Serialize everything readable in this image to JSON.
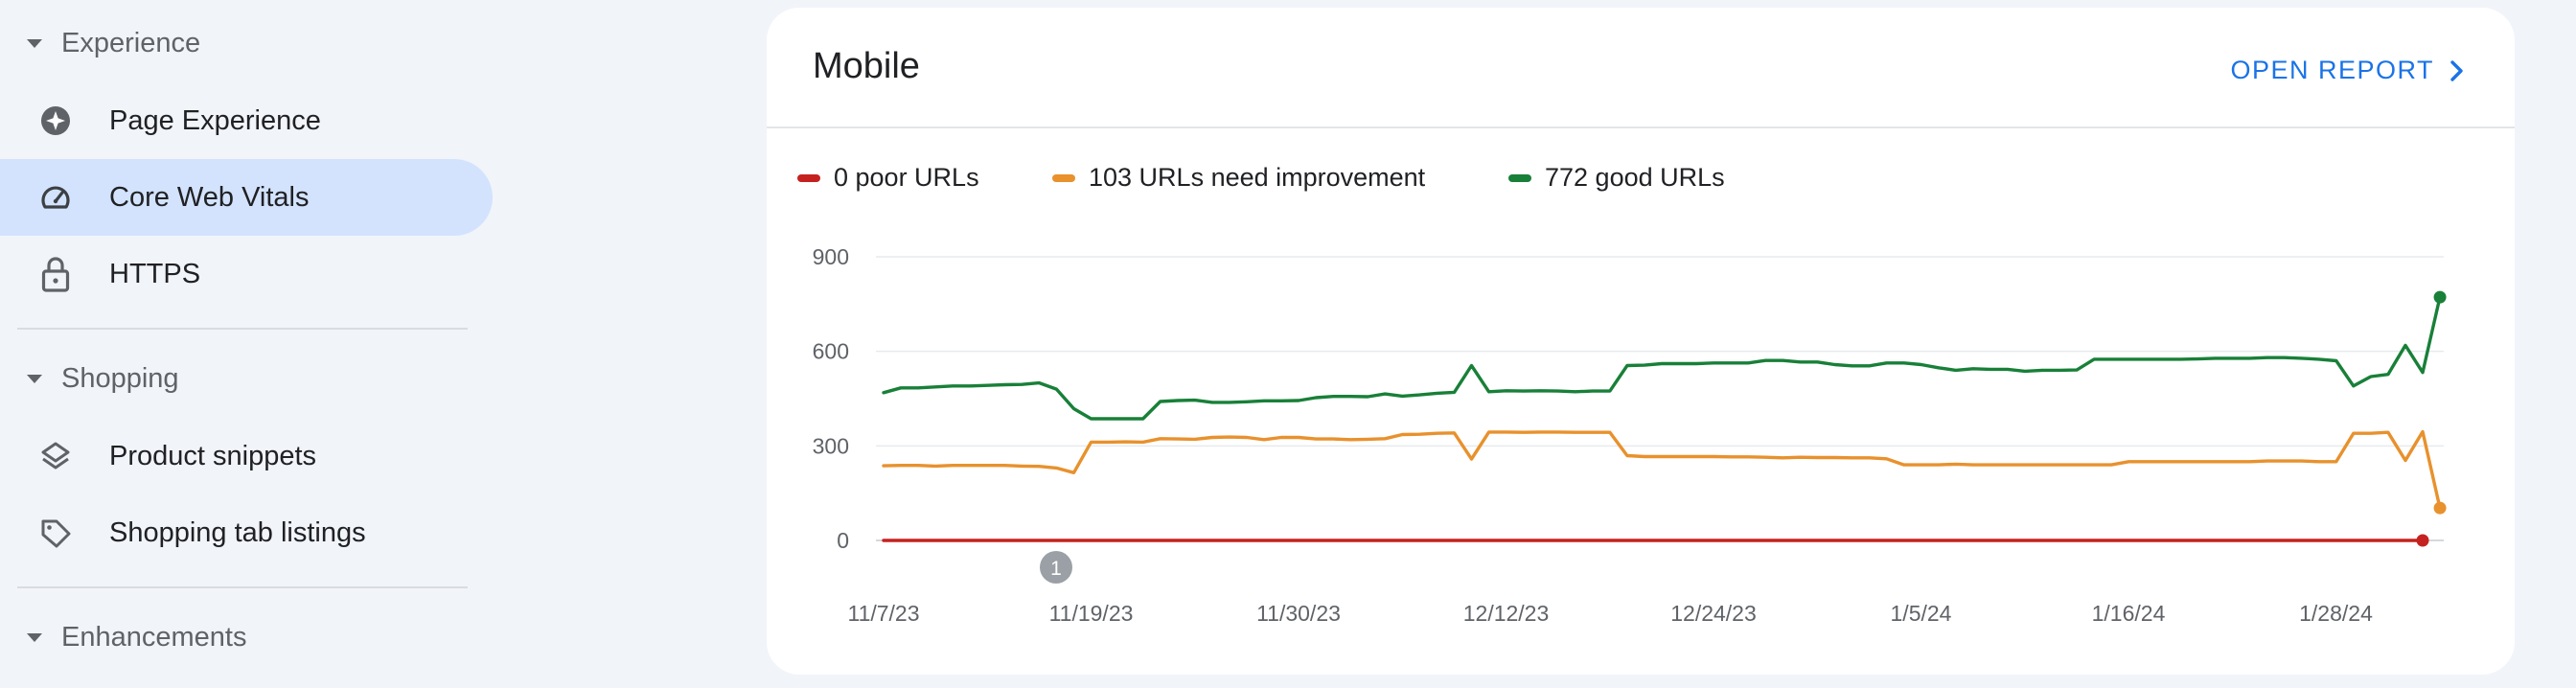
{
  "sidebar": {
    "sections": [
      {
        "label": "Experience"
      },
      {
        "label": "Shopping"
      },
      {
        "label": "Enhancements"
      }
    ],
    "items": [
      {
        "label": "Page Experience",
        "icon": "page-experience-icon"
      },
      {
        "label": "Core Web Vitals",
        "icon": "gauge-icon",
        "active": true
      },
      {
        "label": "HTTPS",
        "icon": "lock-icon"
      },
      {
        "label": "Product snippets",
        "icon": "layers-icon"
      },
      {
        "label": "Shopping tab listings",
        "icon": "tag-icon"
      }
    ],
    "active_color": "#d3e3fd"
  },
  "card": {
    "title": "Mobile",
    "open_report_label": "OPEN REPORT"
  },
  "chart_data": {
    "type": "line",
    "legend": [
      {
        "label": "0 poor URLs",
        "color": "#c5221f"
      },
      {
        "label": "103 URLs need improvement",
        "color": "#e8912d"
      },
      {
        "label": "772 good URLs",
        "color": "#188038"
      }
    ],
    "y_ticks": [
      "900",
      "600",
      "300",
      "0"
    ],
    "ylim": [
      0,
      900
    ],
    "x_tick_labels": [
      "11/7/23",
      "11/19/23",
      "11/30/23",
      "12/12/23",
      "12/24/23",
      "1/5/24",
      "1/16/24",
      "1/28/24"
    ],
    "annotation": {
      "label": "1",
      "at": "11/18/23"
    },
    "series": [
      {
        "name": "poor",
        "color": "#c5221f",
        "values": [
          0,
          0,
          0,
          0,
          0,
          0,
          0,
          0,
          0,
          0,
          0,
          0,
          0,
          0,
          0,
          0,
          0,
          0,
          0,
          0,
          0,
          0,
          0,
          0,
          0,
          0,
          0,
          0,
          0,
          0,
          0,
          0,
          0,
          0,
          0,
          0,
          0,
          0,
          0,
          0,
          0,
          0,
          0,
          0,
          0,
          0,
          0,
          0,
          0,
          0,
          0,
          0,
          0,
          0,
          0,
          0,
          0,
          0,
          0,
          0,
          0,
          0,
          0,
          0,
          0,
          0,
          0,
          0,
          0,
          0,
          0,
          0,
          0,
          0,
          0,
          0,
          0,
          0,
          0,
          0,
          0,
          0,
          0,
          0,
          0,
          0,
          0,
          0,
          0,
          0
        ]
      },
      {
        "name": "need improvement",
        "color": "#e8912d",
        "values": [
          237,
          238,
          238,
          236,
          238,
          238,
          238,
          238,
          236,
          235,
          230,
          215,
          312,
          312,
          313,
          312,
          323,
          322,
          321,
          327,
          328,
          327,
          320,
          327,
          327,
          322,
          322,
          320,
          321,
          323,
          336,
          337,
          340,
          341,
          258,
          344,
          344,
          343,
          344,
          344,
          343,
          343,
          343,
          269,
          266,
          266,
          266,
          266,
          266,
          265,
          265,
          264,
          262,
          264,
          263,
          263,
          262,
          262,
          259,
          240,
          240,
          240,
          242,
          240,
          240,
          240,
          240,
          240,
          240,
          240,
          240,
          240,
          250,
          250,
          250,
          250,
          250,
          250,
          250,
          250,
          252,
          252,
          252,
          250,
          250,
          340,
          340,
          343,
          254,
          345,
          103
        ]
      },
      {
        "name": "good",
        "color": "#188038",
        "values": [
          469,
          484,
          484,
          487,
          490,
          490,
          492,
          494,
          495,
          500,
          480,
          418,
          386,
          386,
          386,
          386,
          441,
          444,
          445,
          438,
          438,
          440,
          443,
          443,
          444,
          453,
          457,
          457,
          456,
          465,
          458,
          462,
          467,
          470,
          555,
          472,
          475,
          474,
          475,
          474,
          472,
          474,
          474,
          555,
          556,
          561,
          561,
          561,
          563,
          563,
          563,
          571,
          571,
          566,
          566,
          558,
          554,
          554,
          563,
          563,
          558,
          548,
          540,
          545,
          543,
          543,
          537,
          540,
          540,
          541,
          575,
          575,
          575,
          575,
          575,
          575,
          576,
          578,
          578,
          578,
          580,
          580,
          578,
          575,
          570,
          490,
          520,
          527,
          619,
          533,
          772
        ]
      }
    ]
  }
}
